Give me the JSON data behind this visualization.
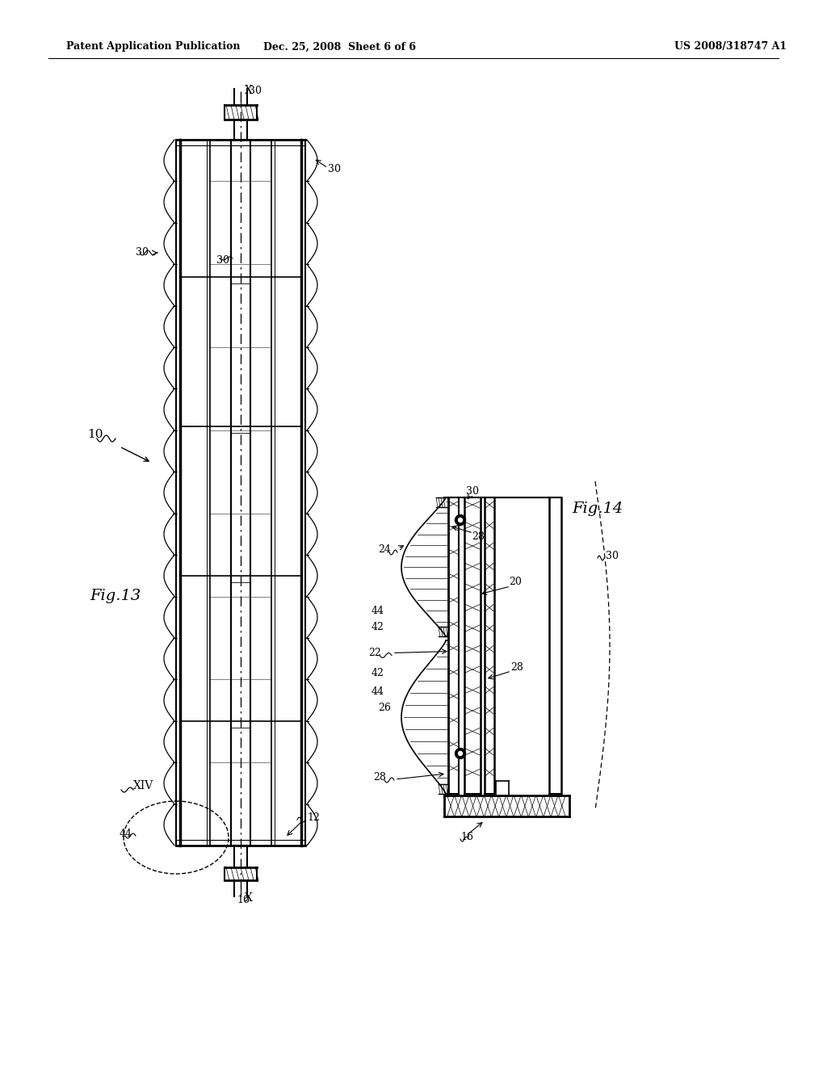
{
  "bg_color": "#ffffff",
  "header_left": "Patent Application Publication",
  "header_center": "Dec. 25, 2008  Sheet 6 of 6",
  "header_right": "US 2008/318747 A1",
  "fig13_label": "Fig.13",
  "fig14_label": "Fig.14"
}
